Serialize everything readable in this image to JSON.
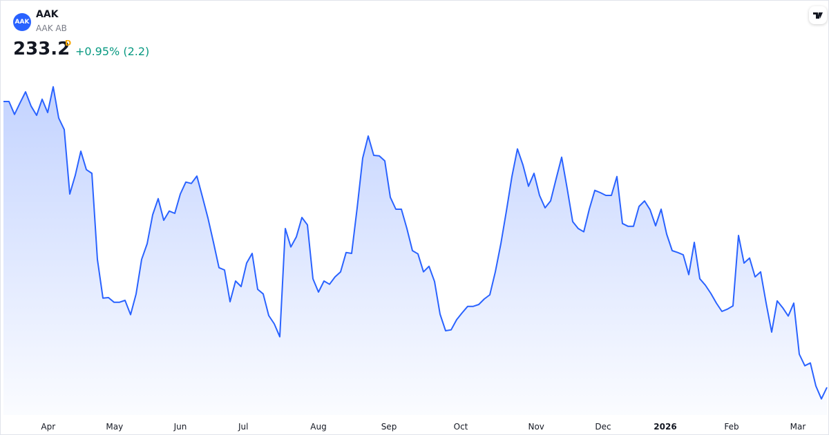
{
  "header": {
    "logo_text": "AAK",
    "symbol": "AAK",
    "name": "AAK AB",
    "price": 233.2,
    "interval": "D",
    "change": "+0.95% (2.2)"
  },
  "chart_data": {
    "type": "area",
    "color": "#2962ff",
    "values": [
      295.3,
      295.3,
      292.5,
      295.0,
      297.4,
      294.3,
      292.3,
      295.8,
      292.9,
      298.5,
      291.7,
      289.2,
      275.2,
      279.3,
      284.5,
      280.5,
      279.7,
      261.0,
      252.6,
      252.7,
      251.7,
      251.7,
      252.1,
      249.0,
      253.5,
      261.0,
      264.4,
      270.7,
      274.2,
      269.5,
      271.5,
      271.0,
      275.2,
      277.8,
      277.5,
      279.1,
      274.6,
      270.0,
      264.7,
      259.2,
      258.7,
      251.8,
      256.3,
      255.1,
      260.2,
      262.3,
      254.5,
      253.5,
      248.8,
      247.0,
      244.2,
      267.7,
      263.7,
      265.9,
      270.1,
      268.5,
      256.8,
      253.9,
      256.3,
      255.6,
      257.2,
      258.3,
      262.5,
      262.3,
      272.2,
      283.0,
      287.8,
      283.6,
      283.5,
      282.4,
      274.5,
      271.9,
      271.9,
      267.7,
      262.9,
      262.2,
      258.3,
      259.5,
      256.2,
      249.1,
      245.5,
      245.7,
      247.9,
      249.4,
      250.8,
      250.8,
      251.2,
      252.4,
      253.3,
      258.3,
      264.4,
      271.5,
      279.0,
      285.0,
      281.5,
      276.9,
      279.7,
      274.9,
      272.2,
      273.7,
      278.5,
      283.2,
      276.4,
      269.2,
      267.7,
      267.0,
      271.9,
      276.0,
      275.5,
      274.9,
      274.9,
      279.0,
      268.8,
      268.2,
      268.2,
      272.5,
      273.7,
      271.8,
      268.3,
      271.9,
      266.5,
      262.9,
      262.5,
      262.0,
      257.7,
      264.7,
      256.8,
      255.4,
      253.6,
      251.5,
      249.7,
      250.2,
      250.9,
      266.2,
      260.2,
      261.3,
      257.2,
      258.3,
      251.5,
      245.2,
      252.0,
      250.5,
      248.7,
      251.5,
      240.4,
      237.9,
      238.5,
      233.5,
      230.7,
      233.2
    ],
    "xlim": [
      0,
      149
    ],
    "xticks": [
      {
        "value": 8.1,
        "label": "Apr"
      },
      {
        "value": 20.1,
        "label": "May"
      },
      {
        "value": 32,
        "label": "Jun"
      },
      {
        "value": 43.4,
        "label": "Jul"
      },
      {
        "value": 57,
        "label": "Aug"
      },
      {
        "value": 69.75,
        "label": "Sep"
      },
      {
        "value": 82.75,
        "label": "Oct"
      },
      {
        "value": 96.4,
        "label": "Nov"
      },
      {
        "value": 108.5,
        "label": "Dec"
      },
      {
        "value": 119.75,
        "label": "2026"
      },
      {
        "value": 131.75,
        "label": "Feb"
      },
      {
        "value": 143.75,
        "label": "Mar"
      }
    ],
    "ylim": [
      226,
      305
    ]
  }
}
